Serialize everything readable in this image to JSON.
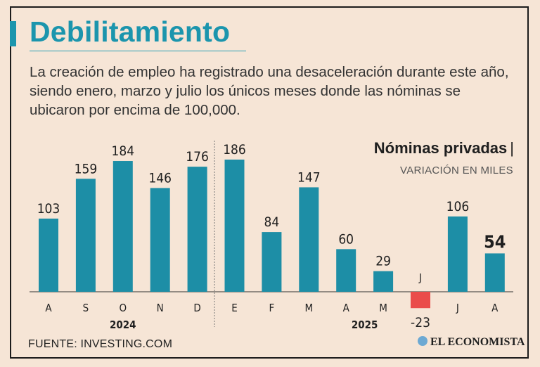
{
  "title": "Debilitamiento",
  "subtitle": "La creación de empleo ha registrado una desaceleración durante este año, siendo enero, marzo y julio los únicos meses donde las nóminas se ubicaron por encima de 100,000.",
  "source": "FUENTE: INVESTING.COM",
  "brand": "EL ECONOMISTA",
  "colors": {
    "accent": "#1b95ad",
    "bar": "#1d8ea6",
    "negative": "#ea4c4a",
    "background": "#f6e5d6"
  },
  "icons": {
    "brand": "globe-icon"
  },
  "chart_data": {
    "type": "bar",
    "title": "Nóminas privadas",
    "title_suffix": "|",
    "unit": "VARIACIÓN EN MILES",
    "categories": [
      "A",
      "S",
      "O",
      "N",
      "D",
      "E",
      "F",
      "M",
      "A",
      "M",
      "J",
      "J",
      "A"
    ],
    "values": [
      103,
      159,
      184,
      146,
      176,
      186,
      84,
      147,
      60,
      29,
      -23,
      106,
      54
    ],
    "year_groups": [
      {
        "label": "2024",
        "start": 0,
        "end": 4
      },
      {
        "label": "2025",
        "start": 5,
        "end": 12
      }
    ],
    "highlight_index": 12,
    "ylim": [
      -23,
      186
    ],
    "xlabel": "",
    "ylabel": "",
    "grid": false
  }
}
